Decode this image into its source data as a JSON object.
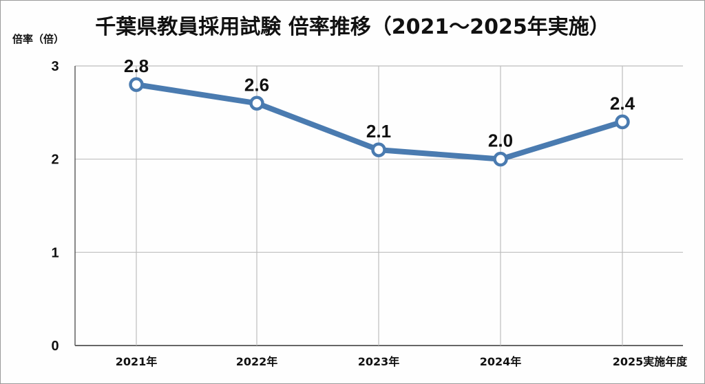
{
  "chart_data": {
    "type": "line",
    "title": "千葉県教員採用試験 倍率推移（2021～2025年実施）",
    "ylabel": "倍率（倍）",
    "xlabel": "",
    "categories": [
      "2021年",
      "2022年",
      "2023年",
      "2024年",
      "2025実施年度"
    ],
    "series": [
      {
        "name": "倍率",
        "values": [
          2.8,
          2.6,
          2.1,
          2.0,
          2.4
        ],
        "color": "#4a7bb0"
      }
    ],
    "data_labels": [
      "2.8",
      "2.6",
      "2.1",
      "2.0",
      "2.4"
    ],
    "yticks": [
      0,
      1,
      2,
      3
    ],
    "ylim": [
      0,
      3
    ],
    "grid": true,
    "legend": "none"
  }
}
